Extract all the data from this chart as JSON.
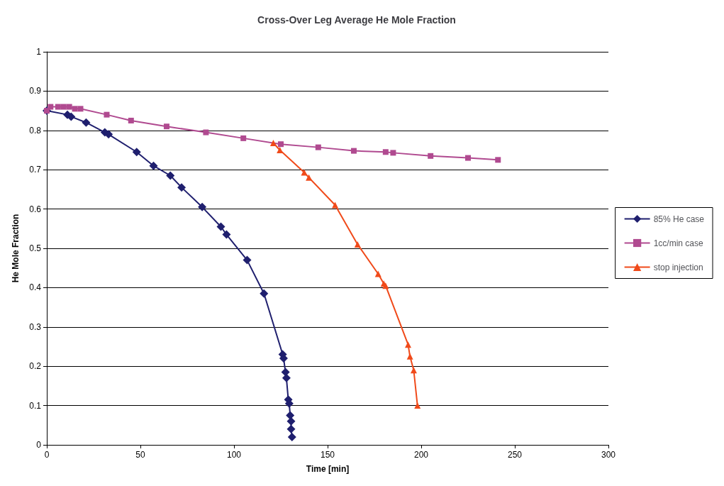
{
  "chart_data": {
    "type": "line",
    "title": "Cross-Over Leg Average He Mole Fraction",
    "xlabel": "Time [min]",
    "ylabel": "He Mole Fraction",
    "xlim": [
      0,
      300
    ],
    "xticks": [
      0,
      50,
      100,
      150,
      200,
      250,
      300
    ],
    "ylim": [
      0,
      1
    ],
    "yticks": [
      0,
      0.1,
      0.2,
      0.3,
      0.4,
      0.5,
      0.6,
      0.7,
      0.8,
      0.9,
      1
    ],
    "grid": "y",
    "legend": "right",
    "series": [
      {
        "name": "85% He case",
        "color": "#1f1f6e",
        "marker": "diamond",
        "x": [
          0,
          11,
          13,
          21,
          31,
          33,
          48,
          57,
          66,
          72,
          83,
          93,
          96,
          107,
          116,
          126,
          126.5,
          127.5,
          128,
          129,
          129.5,
          130,
          130.5,
          130.5,
          131
        ],
        "values": [
          0.85,
          0.84,
          0.835,
          0.82,
          0.795,
          0.79,
          0.745,
          0.71,
          0.685,
          0.655,
          0.605,
          0.555,
          0.535,
          0.47,
          0.385,
          0.23,
          0.22,
          0.185,
          0.17,
          0.115,
          0.105,
          0.075,
          0.06,
          0.04,
          0.02
        ]
      },
      {
        "name": "1cc/min case",
        "color": "#b04a90",
        "marker": "square",
        "x": [
          0,
          2,
          6,
          9,
          12,
          15,
          18,
          32,
          45,
          64,
          85,
          105,
          125,
          145,
          164,
          181,
          185,
          205,
          225,
          241
        ],
        "values": [
          0.85,
          0.86,
          0.86,
          0.86,
          0.86,
          0.855,
          0.855,
          0.84,
          0.825,
          0.81,
          0.795,
          0.78,
          0.765,
          0.757,
          0.748,
          0.745,
          0.743,
          0.735,
          0.73,
          0.725
        ]
      },
      {
        "name": "stop injection",
        "color": "#f04a1a",
        "marker": "triangle",
        "x": [
          121,
          124.5,
          137.5,
          140,
          154,
          166,
          177,
          180,
          181,
          193,
          194,
          196,
          198
        ],
        "values": [
          0.768,
          0.75,
          0.693,
          0.68,
          0.61,
          0.51,
          0.435,
          0.41,
          0.405,
          0.255,
          0.225,
          0.19,
          0.1
        ]
      }
    ]
  }
}
